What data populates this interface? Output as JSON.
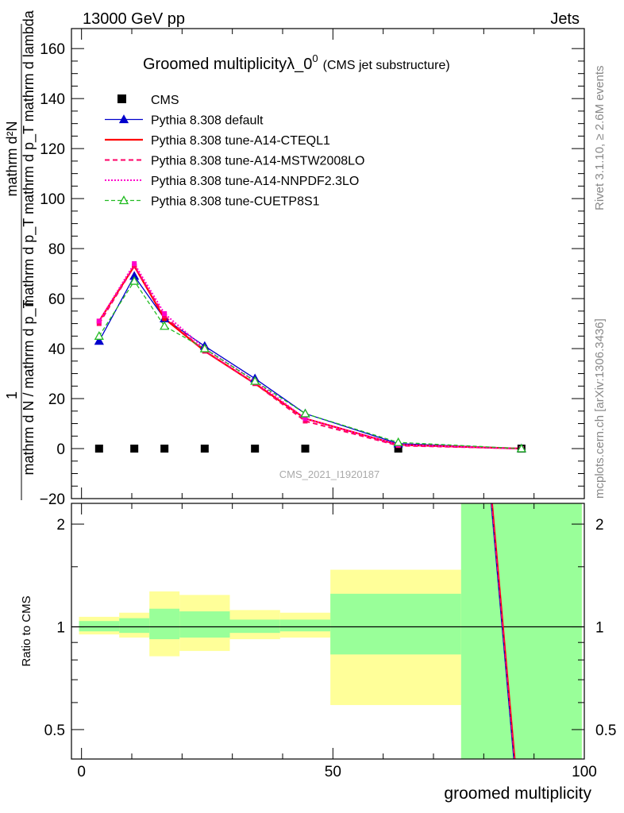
{
  "header": {
    "energy": "13000 GeV pp",
    "process": "Jets"
  },
  "side_text": {
    "rivet": "Rivet 3.1.10, ≥ 2.6M events",
    "mcplots": "mcplots.cern.ch [arXiv:1306.3436]"
  },
  "watermark": "CMS_2021_I1920187",
  "ratio_ylabel": "Ratio to CMS",
  "colors": {
    "cms": "#000000",
    "default": "#0000cc",
    "cteql1": "#ff0000",
    "mstw": "#ff0066",
    "nnpdf": "#ff00cc",
    "cuetp8s1": "#22bb22",
    "band_inner": "#99ff99",
    "band_outer": "#ffff99"
  },
  "chart_data": [
    {
      "type": "line",
      "title": "Groomed multiplicityλ_0",
      "title_sup": "0",
      "subtitle": "(CMS jet substructure)",
      "ylabel_num": "mathrm d²N",
      "ylabel_den": "mathrm d p_T mathrm d p_T mathrm d lambda",
      "ylabel_prefix_num": "1",
      "ylabel_prefix_den": "mathrm d N / mathrm d p_T",
      "xlim": [
        -2,
        100
      ],
      "ylim": [
        -20,
        168
      ],
      "y_ticks": [
        -20,
        0,
        20,
        40,
        60,
        80,
        100,
        120,
        140,
        160
      ],
      "y_tick_labels": [
        "−20",
        "0",
        "20",
        "40",
        "60",
        "80",
        "100",
        "120",
        "140",
        "160"
      ],
      "legend_placement": "upper-left",
      "x": [
        3.5,
        10.5,
        16.5,
        24.5,
        34.5,
        44.5,
        63,
        87.5
      ],
      "series": [
        {
          "name": "CMS",
          "key": "cms",
          "values": [
            0,
            0,
            0,
            0,
            0,
            0,
            0,
            0
          ]
        },
        {
          "name": "Pythia 8.308 default",
          "key": "default",
          "values": [
            43,
            69,
            52,
            41,
            28,
            14,
            2,
            0
          ]
        },
        {
          "name": "Pythia 8.308 tune-A14-CTEQL1",
          "key": "cteql1",
          "values": [
            51,
            73,
            52,
            39,
            26,
            12,
            1.5,
            0
          ]
        },
        {
          "name": "Pythia 8.308 tune-A14-MSTW2008LO",
          "key": "mstw",
          "values": [
            50,
            73,
            53,
            39,
            26,
            11,
            1.2,
            0
          ]
        },
        {
          "name": "Pythia 8.308 tune-A14-NNPDF2.3LO",
          "key": "nnpdf",
          "values": [
            51,
            74,
            54,
            40,
            27,
            12,
            1.5,
            0
          ]
        },
        {
          "name": "Pythia 8.308 tune-CUETP8S1",
          "key": "cuetp8s1",
          "values": [
            45,
            67,
            49,
            40,
            27,
            14,
            2.5,
            0
          ]
        }
      ]
    },
    {
      "type": "line",
      "xlabel": "groomed multiplicity",
      "ylabel": "Ratio to CMS",
      "scale": "log",
      "xlim": [
        -2,
        100
      ],
      "ylim": [
        0.41,
        2.3
      ],
      "x_ticks": [
        0,
        50,
        100
      ],
      "x_tick_labels": [
        "0",
        "50",
        "100"
      ],
      "y_ticks": [
        0.5,
        1,
        2
      ],
      "y_tick_labels": [
        "0.5",
        "1",
        "2"
      ],
      "bands": [
        {
          "x0": -0.5,
          "x1": 7.5,
          "inner": [
            0.97,
            1.04
          ],
          "outer": [
            0.95,
            1.07
          ]
        },
        {
          "x0": 7.5,
          "x1": 13.5,
          "inner": [
            0.96,
            1.06
          ],
          "outer": [
            0.93,
            1.1
          ]
        },
        {
          "x0": 13.5,
          "x1": 19.5,
          "inner": [
            0.92,
            1.13
          ],
          "outer": [
            0.82,
            1.27
          ]
        },
        {
          "x0": 19.5,
          "x1": 29.5,
          "inner": [
            0.93,
            1.11
          ],
          "outer": [
            0.85,
            1.24
          ]
        },
        {
          "x0": 29.5,
          "x1": 39.5,
          "inner": [
            0.96,
            1.05
          ],
          "outer": [
            0.92,
            1.12
          ]
        },
        {
          "x0": 39.5,
          "x1": 49.5,
          "inner": [
            0.97,
            1.05
          ],
          "outer": [
            0.93,
            1.1
          ]
        },
        {
          "x0": 49.5,
          "x1": 75.5,
          "inner": [
            0.83,
            1.25
          ],
          "outer": [
            0.59,
            1.47
          ]
        },
        {
          "x0": 75.5,
          "x1": 99.5,
          "inner": [
            0.41,
            2.3
          ],
          "outer": [
            0.41,
            2.3
          ]
        }
      ],
      "ratio_lines": [
        {
          "key": "default",
          "x": [
            81.5,
            86.0
          ],
          "values": [
            2.3,
            0.41
          ]
        },
        {
          "key": "cteql1",
          "x": [
            81.7,
            86.2
          ],
          "values": [
            2.3,
            0.41
          ]
        },
        {
          "key": "mstw",
          "x": [
            81.6,
            86.1
          ],
          "values": [
            2.3,
            0.41
          ]
        }
      ]
    }
  ]
}
